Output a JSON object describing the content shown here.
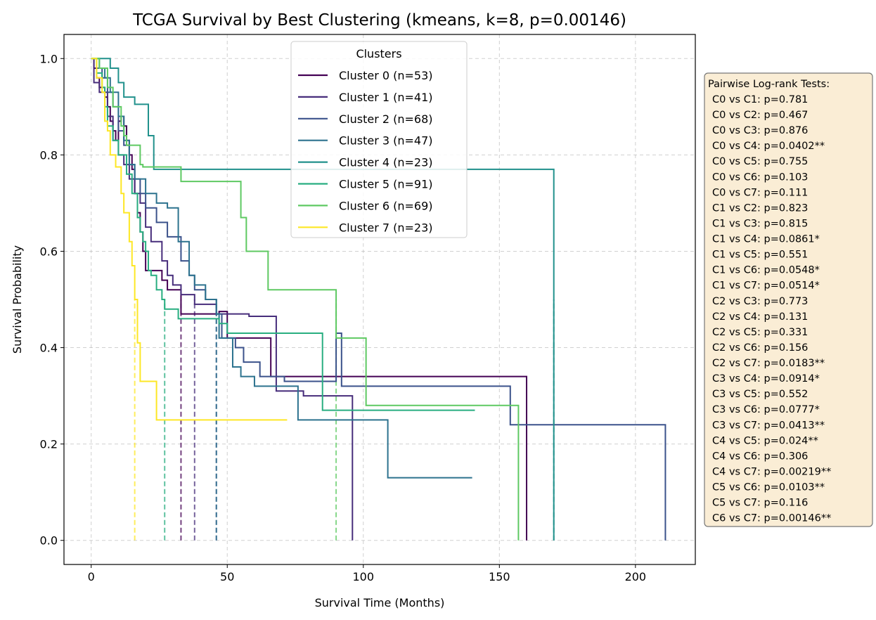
{
  "chart_data": {
    "type": "line",
    "title": "TCGA Survival by Best Clustering (kmeans, k=8, p=0.00146)",
    "xlabel": "Survival Time (Months)",
    "ylabel": "Survival Probability",
    "xlim": [
      -10,
      222
    ],
    "ylim": [
      -0.05,
      1.05
    ],
    "x_ticks": [
      0,
      50,
      100,
      150,
      200
    ],
    "y_ticks": [
      0.0,
      0.2,
      0.4,
      0.6,
      0.8,
      1.0
    ],
    "x_tick_labels": [
      "0",
      "50",
      "100",
      "150",
      "200"
    ],
    "y_tick_labels": [
      "0.0",
      "0.2",
      "0.4",
      "0.6",
      "0.8",
      "1.0"
    ],
    "grid": true,
    "legend": {
      "title": "Clusters",
      "placement": "top-center"
    },
    "series": [
      {
        "name": "Cluster 0 (n=53)",
        "color": "#440154",
        "median": 33,
        "steps": [
          [
            0,
            1.0
          ],
          [
            1,
            0.98
          ],
          [
            2,
            0.96
          ],
          [
            3,
            0.94
          ],
          [
            5,
            0.92
          ],
          [
            6,
            0.9
          ],
          [
            7,
            0.87
          ],
          [
            8,
            0.85
          ],
          [
            9,
            0.83
          ],
          [
            10,
            0.87
          ],
          [
            11,
            0.88
          ],
          [
            12,
            0.86
          ],
          [
            13,
            0.83
          ],
          [
            14,
            0.8
          ],
          [
            15,
            0.77
          ],
          [
            16,
            0.72
          ],
          [
            17,
            0.68
          ],
          [
            18,
            0.64
          ],
          [
            19,
            0.6
          ],
          [
            20,
            0.56
          ],
          [
            26,
            0.54
          ],
          [
            28,
            0.52
          ],
          [
            33,
            0.47
          ],
          [
            47,
            0.475
          ],
          [
            50,
            0.42
          ],
          [
            66,
            0.34
          ],
          [
            160,
            0.34
          ],
          [
            160,
            0.0
          ]
        ]
      },
      {
        "name": "Cluster 1 (n=41)",
        "color": "#472d7b",
        "median": 38,
        "steps": [
          [
            0,
            1.0
          ],
          [
            1,
            0.95
          ],
          [
            3,
            0.93
          ],
          [
            6,
            0.88
          ],
          [
            8,
            0.83
          ],
          [
            10,
            0.8
          ],
          [
            12,
            0.78
          ],
          [
            14,
            0.75
          ],
          [
            16,
            0.72
          ],
          [
            18,
            0.7
          ],
          [
            20,
            0.65
          ],
          [
            22,
            0.62
          ],
          [
            26,
            0.58
          ],
          [
            28,
            0.55
          ],
          [
            30,
            0.53
          ],
          [
            33,
            0.51
          ],
          [
            38,
            0.49
          ],
          [
            46,
            0.47
          ],
          [
            58,
            0.465
          ],
          [
            68,
            0.31
          ],
          [
            78,
            0.3
          ],
          [
            96,
            0.3
          ],
          [
            96,
            0.0
          ]
        ]
      },
      {
        "name": "Cluster 2 (n=68)",
        "color": "#3b528b",
        "median": 46,
        "steps": [
          [
            0,
            1.0
          ],
          [
            2,
            0.98
          ],
          [
            4,
            0.96
          ],
          [
            6,
            0.93
          ],
          [
            8,
            0.9
          ],
          [
            10,
            0.85
          ],
          [
            12,
            0.82
          ],
          [
            14,
            0.78
          ],
          [
            16,
            0.75
          ],
          [
            18,
            0.72
          ],
          [
            20,
            0.69
          ],
          [
            24,
            0.66
          ],
          [
            28,
            0.63
          ],
          [
            33,
            0.58
          ],
          [
            36,
            0.55
          ],
          [
            38,
            0.52
          ],
          [
            42,
            0.5
          ],
          [
            46,
            0.47
          ],
          [
            48,
            0.42
          ],
          [
            53,
            0.4
          ],
          [
            56,
            0.37
          ],
          [
            62,
            0.34
          ],
          [
            71,
            0.33
          ],
          [
            90,
            0.43
          ],
          [
            92,
            0.32
          ],
          [
            154,
            0.24
          ],
          [
            211,
            0.24
          ],
          [
            211,
            0.0
          ]
        ]
      },
      {
        "name": "Cluster 3 (n=47)",
        "color": "#2c728e",
        "median": 46,
        "steps": [
          [
            0,
            1.0
          ],
          [
            3,
            0.98
          ],
          [
            5,
            0.96
          ],
          [
            7,
            0.93
          ],
          [
            10,
            0.88
          ],
          [
            12,
            0.83
          ],
          [
            14,
            0.78
          ],
          [
            16,
            0.75
          ],
          [
            20,
            0.72
          ],
          [
            24,
            0.7
          ],
          [
            28,
            0.69
          ],
          [
            32,
            0.62
          ],
          [
            36,
            0.55
          ],
          [
            38,
            0.53
          ],
          [
            42,
            0.5
          ],
          [
            46,
            0.47
          ],
          [
            47,
            0.42
          ],
          [
            52,
            0.36
          ],
          [
            55,
            0.34
          ],
          [
            60,
            0.32
          ],
          [
            76,
            0.25
          ],
          [
            109,
            0.13
          ],
          [
            140,
            0.13
          ]
        ]
      },
      {
        "name": "Cluster 4 (n=23)",
        "color": "#21918c",
        "median": 170,
        "steps": [
          [
            0,
            1.0
          ],
          [
            5,
            1.0
          ],
          [
            7,
            0.98
          ],
          [
            10,
            0.95
          ],
          [
            12,
            0.92
          ],
          [
            16,
            0.905
          ],
          [
            16,
            0.905
          ],
          [
            21,
            0.84
          ],
          [
            23,
            0.77
          ],
          [
            170,
            0.77
          ],
          [
            170,
            0.0
          ]
        ]
      },
      {
        "name": "Cluster 5 (n=91)",
        "color": "#28ae80",
        "median": 27,
        "steps": [
          [
            0,
            1.0
          ],
          [
            2,
            0.97
          ],
          [
            4,
            0.94
          ],
          [
            5,
            0.9
          ],
          [
            6,
            0.86
          ],
          [
            8,
            0.83
          ],
          [
            10,
            0.8
          ],
          [
            13,
            0.76
          ],
          [
            15,
            0.72
          ],
          [
            17,
            0.67
          ],
          [
            18,
            0.64
          ],
          [
            19,
            0.62
          ],
          [
            20,
            0.6
          ],
          [
            21,
            0.56
          ],
          [
            22,
            0.55
          ],
          [
            24,
            0.52
          ],
          [
            26,
            0.5
          ],
          [
            27,
            0.48
          ],
          [
            32,
            0.46
          ],
          [
            47,
            0.45
          ],
          [
            50,
            0.43
          ],
          [
            85,
            0.27
          ],
          [
            141,
            0.27
          ]
        ]
      },
      {
        "name": "Cluster 6 (n=69)",
        "color": "#5ec962",
        "median": 90,
        "steps": [
          [
            0,
            1.0
          ],
          [
            3,
            0.98
          ],
          [
            6,
            0.94
          ],
          [
            8,
            0.9
          ],
          [
            11,
            0.86
          ],
          [
            12,
            0.84
          ],
          [
            13,
            0.82
          ],
          [
            18,
            0.78
          ],
          [
            19,
            0.775
          ],
          [
            32,
            0.775
          ],
          [
            33,
            0.745
          ],
          [
            55,
            0.67
          ],
          [
            57,
            0.6
          ],
          [
            65,
            0.52
          ],
          [
            90,
            0.42
          ],
          [
            101,
            0.28
          ],
          [
            157,
            0.28
          ],
          [
            157,
            0.0
          ]
        ]
      },
      {
        "name": "Cluster 7 (n=23)",
        "color": "#fde725",
        "median": 16,
        "steps": [
          [
            0,
            1.0
          ],
          [
            2,
            0.96
          ],
          [
            4,
            0.93
          ],
          [
            5,
            0.87
          ],
          [
            6,
            0.85
          ],
          [
            7,
            0.8
          ],
          [
            9,
            0.775
          ],
          [
            11,
            0.72
          ],
          [
            12,
            0.68
          ],
          [
            14,
            0.62
          ],
          [
            15,
            0.57
          ],
          [
            16,
            0.5
          ],
          [
            17,
            0.41
          ],
          [
            18,
            0.33
          ],
          [
            24,
            0.25
          ],
          [
            72,
            0.25
          ]
        ]
      }
    ],
    "pairwise_box": {
      "title": "Pairwise Log-rank Tests:",
      "lines": [
        "C0 vs C1: p=0.781",
        "C0 vs C2: p=0.467",
        "C0 vs C3: p=0.876",
        "C0 vs C4: p=0.0402**",
        "C0 vs C5: p=0.755",
        "C0 vs C6: p=0.103",
        "C0 vs C7: p=0.111",
        "C1 vs C2: p=0.823",
        "C1 vs C3: p=0.815",
        "C1 vs C4: p=0.0861*",
        "C1 vs C5: p=0.551",
        "C1 vs C6: p=0.0548*",
        "C1 vs C7: p=0.0514*",
        "C2 vs C3: p=0.773",
        "C2 vs C4: p=0.131",
        "C2 vs C5: p=0.331",
        "C2 vs C6: p=0.156",
        "C2 vs C7: p=0.0183**",
        "C3 vs C4: p=0.0914*",
        "C3 vs C5: p=0.552",
        "C3 vs C6: p=0.0777*",
        "C3 vs C7: p=0.0413**",
        "C4 vs C5: p=0.024**",
        "C4 vs C6: p=0.306",
        "C4 vs C7: p=0.00219**",
        "C5 vs C6: p=0.0103**",
        "C5 vs C7: p=0.116",
        "C6 vs C7: p=0.00146**"
      ]
    }
  }
}
